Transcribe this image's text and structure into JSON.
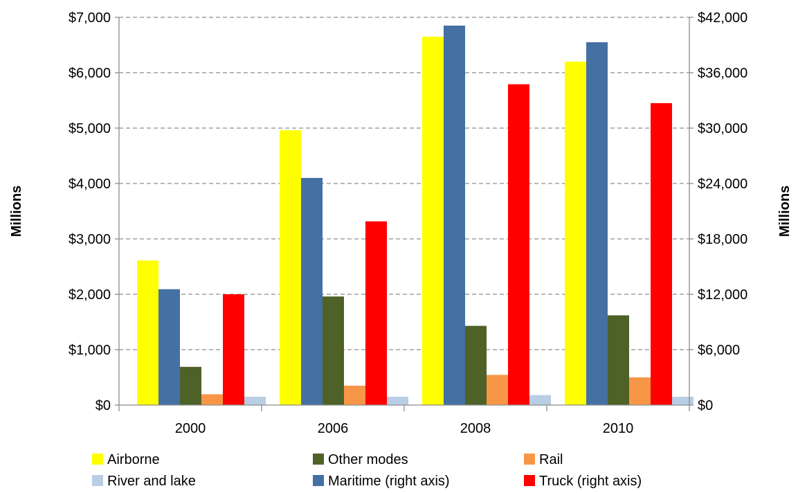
{
  "chart_data": {
    "type": "bar",
    "categories": [
      "2000",
      "2006",
      "2008",
      "2010"
    ],
    "y_left": {
      "label": "Millions",
      "ylim": [
        0,
        7000
      ],
      "ticks": [
        0,
        1000,
        2000,
        3000,
        4000,
        5000,
        6000,
        7000
      ],
      "tick_labels": [
        "$0",
        "$1,000",
        "$2,000",
        "$3,000",
        "$4,000",
        "$5,000",
        "$6,000",
        "$7,000"
      ]
    },
    "y_right": {
      "label": "Millions",
      "ylim": [
        0,
        42000
      ],
      "ticks": [
        0,
        6000,
        12000,
        18000,
        24000,
        30000,
        36000,
        42000
      ],
      "tick_labels": [
        "$0",
        "$6,000",
        "$12,000",
        "$18,000",
        "$24,000",
        "$30,000",
        "$36,000",
        "$42,000"
      ]
    },
    "grid": true,
    "legend_position": "bottom",
    "series": [
      {
        "name": "Airborne",
        "axis": "left",
        "color": "#ffff00",
        "values": [
          2610,
          4960,
          6650,
          6200
        ]
      },
      {
        "name": "Maritime (right axis)",
        "axis": "right",
        "color": "#4470a4",
        "values": [
          12550,
          24600,
          41100,
          39300
        ]
      },
      {
        "name": "Other modes",
        "axis": "left",
        "color": "#4e6228",
        "values": [
          690,
          1960,
          1430,
          1620
        ]
      },
      {
        "name": "Rail",
        "axis": "left",
        "color": "#f79646",
        "values": [
          195,
          350,
          545,
          500
        ]
      },
      {
        "name": "Truck (right axis)",
        "axis": "right",
        "color": "#ff0000",
        "values": [
          12000,
          19900,
          34750,
          32700
        ]
      },
      {
        "name": "River and lake",
        "axis": "left",
        "color": "#b9cde5",
        "values": [
          150,
          150,
          180,
          150
        ]
      }
    ],
    "legend_rows": [
      [
        "Airborne",
        "Other modes",
        "Rail"
      ],
      [
        "River and lake",
        "Maritime (right axis)",
        "Truck (right axis)"
      ]
    ]
  }
}
